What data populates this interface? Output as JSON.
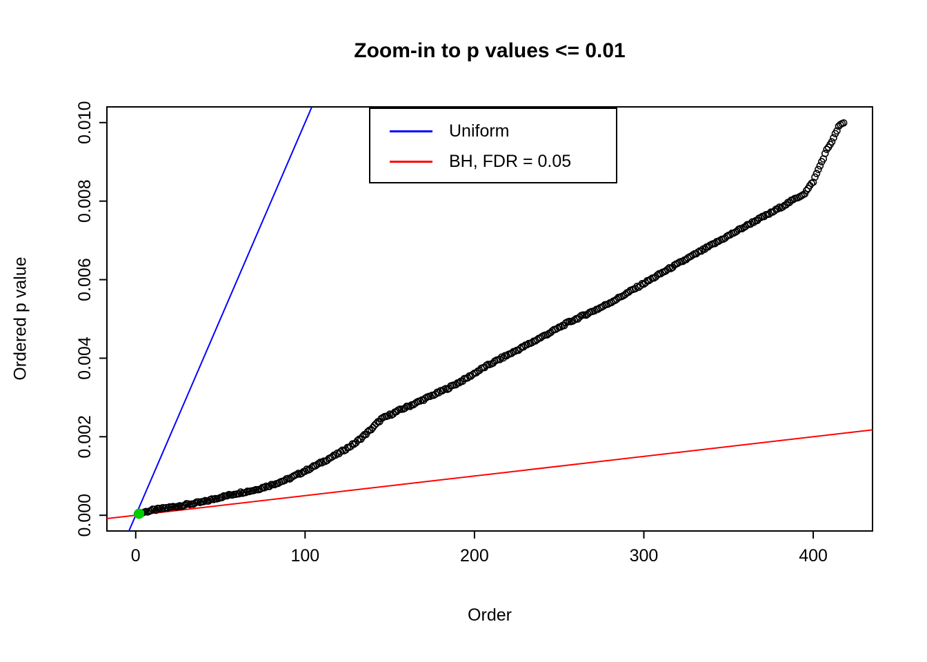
{
  "figure": {
    "background": "#FFFFFF",
    "axis_color": "#000000"
  },
  "chart_data": {
    "type": "scatter",
    "title": "Zoom-in to p values <= 0.01",
    "xlabel": "Order",
    "ylabel": "Ordered p value",
    "xlim": [
      -17,
      435
    ],
    "ylim": [
      -0.0004,
      0.0104
    ],
    "grid": false,
    "x_ticks": {
      "values": [
        0,
        100,
        200,
        300,
        400
      ],
      "labels": [
        "0",
        "100",
        "200",
        "300",
        "400"
      ]
    },
    "y_ticks": {
      "values": [
        0.0,
        0.002,
        0.004,
        0.006,
        0.008,
        0.01
      ],
      "labels": [
        "0.000",
        "0.002",
        "0.004",
        "0.006",
        "0.008",
        "0.010"
      ]
    },
    "legend": {
      "position": "top-center",
      "entries": [
        {
          "label": "Uniform",
          "color": "#0000FF",
          "type": "line"
        },
        {
          "label": "BH, FDR = 0.05",
          "color": "#FF0000",
          "type": "line"
        }
      ]
    },
    "reference_lines": [
      {
        "name": "uniform-line",
        "color": "#0000FF",
        "slope": 0.0001,
        "intercept": 0
      },
      {
        "name": "bh-line",
        "color": "#FF0000",
        "slope": 5e-06,
        "intercept": 0
      }
    ],
    "series": [
      {
        "name": "ordered-p-values",
        "marker": "open-circle",
        "color": "#000000",
        "n_points": 418,
        "anchors": [
          [
            1,
            2e-05
          ],
          [
            5,
            8e-05
          ],
          [
            10,
            0.00013
          ],
          [
            20,
            0.0002
          ],
          [
            30,
            0.00027
          ],
          [
            40,
            0.00034
          ],
          [
            50,
            0.00046
          ],
          [
            60,
            0.00056
          ],
          [
            70,
            0.00064
          ],
          [
            80,
            0.00077
          ],
          [
            90,
            0.00092
          ],
          [
            100,
            0.00113
          ],
          [
            110,
            0.00135
          ],
          [
            120,
            0.00158
          ],
          [
            130,
            0.00185
          ],
          [
            138,
            0.00215
          ],
          [
            145,
            0.00245
          ],
          [
            155,
            0.00266
          ],
          [
            165,
            0.00285
          ],
          [
            175,
            0.00305
          ],
          [
            185,
            0.00325
          ],
          [
            195,
            0.00348
          ],
          [
            205,
            0.00375
          ],
          [
            215,
            0.00398
          ],
          [
            225,
            0.0042
          ],
          [
            235,
            0.00443
          ],
          [
            245,
            0.00466
          ],
          [
            255,
            0.0049
          ],
          [
            265,
            0.0051
          ],
          [
            275,
            0.0053
          ],
          [
            285,
            0.00553
          ],
          [
            295,
            0.00578
          ],
          [
            305,
            0.00603
          ],
          [
            315,
            0.00628
          ],
          [
            325,
            0.00652
          ],
          [
            335,
            0.00676
          ],
          [
            345,
            0.007
          ],
          [
            355,
            0.00724
          ],
          [
            365,
            0.00748
          ],
          [
            375,
            0.0077
          ],
          [
            385,
            0.00795
          ],
          [
            395,
            0.0082
          ],
          [
            400,
            0.0085
          ],
          [
            404,
            0.0089
          ],
          [
            408,
            0.0093
          ],
          [
            412,
            0.0096
          ],
          [
            415,
            0.0099
          ],
          [
            418,
            0.00999
          ]
        ]
      },
      {
        "name": "bh-significant",
        "marker": "filled-circle",
        "color": "#00CD00",
        "points": [
          [
            2,
            4e-05
          ]
        ]
      }
    ]
  }
}
